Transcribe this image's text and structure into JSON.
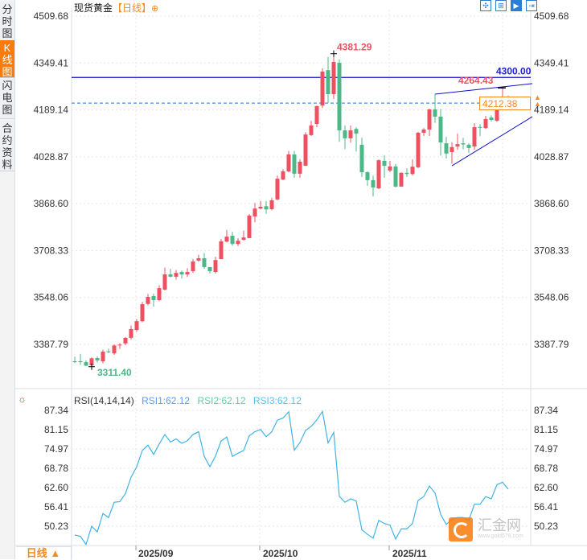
{
  "sidebar": {
    "tabs": [
      {
        "label": "分时图",
        "active": false
      },
      {
        "label": "K线图",
        "active": true
      },
      {
        "label": "闪电图",
        "active": false
      },
      {
        "label": "合约资料",
        "active": false
      }
    ]
  },
  "header": {
    "instrument": "现货黄金",
    "period": "【日线】",
    "add_icon": "⊕"
  },
  "toolbar": {
    "icons": [
      "crosshair-icon",
      "range-select-icon",
      "play-cursor-icon",
      "exit-icon"
    ]
  },
  "colors": {
    "up": "#ef5060",
    "down": "#4db887",
    "rsi": "#3fb4e8",
    "accent": "#f58a1f",
    "line": "#1010c8"
  },
  "main_chart": {
    "price_ticks": [
      "4509.68",
      "4349.41",
      "4189.14",
      "4028.87",
      "3868.60",
      "3708.33",
      "3548.06",
      "3387.79"
    ],
    "price_range": [
      3387.79,
      4509.68
    ],
    "high_label": "4381.29",
    "low_label": "3311.40",
    "recent_high_label": "4264.43",
    "hline_label": "4300.00",
    "hline_value": 4300.0,
    "last_price": "4212.38",
    "upper_trendline": {
      "from": {
        "candle": 64,
        "price": 4243
      },
      "to": {
        "candle": 81.3,
        "price": 4279
      }
    },
    "lower_trendline": {
      "from": {
        "candle": 67,
        "price": 3998
      },
      "to": {
        "candle": 81.3,
        "price": 4166
      }
    },
    "candles": [
      [
        3330,
        3346,
        3324,
        3327
      ],
      [
        3330,
        3355,
        3318,
        3327
      ],
      [
        3327,
        3333,
        3314,
        3315
      ],
      [
        3316,
        3344,
        3311.4,
        3340
      ],
      [
        3341,
        3347,
        3326,
        3333
      ],
      [
        3330,
        3370,
        3323,
        3363
      ],
      [
        3364,
        3373,
        3358,
        3361
      ],
      [
        3357,
        3388,
        3352,
        3384
      ],
      [
        3385,
        3392,
        3372,
        3387
      ],
      [
        3391,
        3413,
        3385,
        3410
      ],
      [
        3410,
        3452,
        3404,
        3440
      ],
      [
        3437,
        3474,
        3431,
        3467
      ],
      [
        3467,
        3533,
        3463,
        3525
      ],
      [
        3526,
        3560,
        3522,
        3550
      ],
      [
        3553,
        3561,
        3517,
        3539
      ],
      [
        3539,
        3590,
        3535,
        3580
      ],
      [
        3575,
        3650,
        3572,
        3627
      ],
      [
        3627,
        3646,
        3617,
        3619
      ],
      [
        3619,
        3642,
        3609,
        3632
      ],
      [
        3635,
        3640,
        3613,
        3627
      ],
      [
        3627,
        3648,
        3618,
        3635
      ],
      [
        3638,
        3680,
        3632,
        3671
      ],
      [
        3674,
        3694,
        3670,
        3682
      ],
      [
        3682,
        3700,
        3646,
        3652
      ],
      [
        3652,
        3652,
        3630,
        3638
      ],
      [
        3635,
        3687,
        3630,
        3676
      ],
      [
        3679,
        3748,
        3679,
        3740
      ],
      [
        3739,
        3779,
        3736,
        3756
      ],
      [
        3759,
        3772,
        3725,
        3731
      ],
      [
        3731,
        3751,
        3724,
        3742
      ],
      [
        3745,
        3777,
        3742,
        3753
      ],
      [
        3751,
        3833,
        3751,
        3828
      ],
      [
        3825,
        3871,
        3805,
        3852
      ],
      [
        3852,
        3878,
        3849,
        3858
      ],
      [
        3860,
        3878,
        3834,
        3849
      ],
      [
        3850,
        3889,
        3846,
        3880
      ],
      [
        3883,
        3965,
        3880,
        3954
      ],
      [
        3951,
        3987,
        3949,
        3979
      ],
      [
        3979,
        4049,
        3976,
        4037
      ],
      [
        4037,
        4049,
        3957,
        3971
      ],
      [
        3971,
        4021,
        3957,
        4012
      ],
      [
        3998,
        4113,
        3998,
        4105
      ],
      [
        4103,
        4152,
        4100,
        4136
      ],
      [
        4141,
        4204,
        4130,
        4202
      ],
      [
        4204,
        4331,
        4196,
        4320
      ],
      [
        4325,
        4370,
        4212,
        4243
      ],
      [
        4243,
        4381.29,
        4226,
        4353
      ],
      [
        4350,
        4362,
        4080,
        4119
      ],
      [
        4119,
        4136,
        4055,
        4092
      ],
      [
        4092,
        4136,
        4077,
        4119
      ],
      [
        4124,
        4130,
        4047,
        4108
      ],
      [
        4070,
        4094,
        3960,
        3976
      ],
      [
        3976,
        3979,
        3930,
        3949
      ],
      [
        3949,
        3965,
        3893,
        3924
      ],
      [
        3921,
        4020,
        3918,
        4017
      ],
      [
        4015,
        4034,
        3957,
        3998
      ],
      [
        3982,
        4015,
        3976,
        3996
      ],
      [
        3996,
        4004,
        3924,
        3927
      ],
      [
        3927,
        3976,
        3927,
        3974
      ],
      [
        3974,
        3990,
        3960,
        3970
      ],
      [
        3970,
        4020,
        3965,
        3995
      ],
      [
        3993,
        4114,
        3990,
        4111
      ],
      [
        4111,
        4127,
        4100,
        4122
      ],
      [
        4122,
        4193,
        4100,
        4191
      ],
      [
        4191,
        4245,
        4145,
        4166
      ],
      [
        4166,
        4192,
        4033,
        4078
      ],
      [
        4075,
        4097,
        4023,
        4040
      ],
      [
        4045,
        4079,
        4005,
        4062
      ],
      [
        4064,
        4108,
        4053,
        4072
      ],
      [
        4075,
        4094,
        4055,
        4071
      ],
      [
        4070,
        4075,
        4042,
        4059
      ],
      [
        4064,
        4144,
        4053,
        4130
      ],
      [
        4131,
        4141,
        4100,
        4128
      ],
      [
        4127,
        4169,
        4124,
        4158
      ],
      [
        4163,
        4170,
        4149,
        4155
      ],
      [
        4152,
        4227,
        4148,
        4212
      ],
      [
        4221,
        4264.43,
        4194,
        4228
      ],
      [
        4230,
        4238,
        4208,
        4212.38
      ]
    ]
  },
  "rsi": {
    "title": "RSI(14,14,14)",
    "rsi1": "RSI1:62.12",
    "rsi2": "RSI2:62.12",
    "rsi3": "RSI3:62.12",
    "ticks": [
      "87.34",
      "81.15",
      "74.97",
      "68.78",
      "62.60",
      "56.41",
      "50.23"
    ],
    "range": [
      50.23,
      87.34
    ],
    "values": [
      47.4,
      47.0,
      44.4,
      50.2,
      48.4,
      54.3,
      53.0,
      57.9,
      58.1,
      60.7,
      65.9,
      69.3,
      74.5,
      76.2,
      73.2,
      76.6,
      79.6,
      77.2,
      78.2,
      76.8,
      77.6,
      79.6,
      80.5,
      72.6,
      69.3,
      72.7,
      77.5,
      78.8,
      72.6,
      73.6,
      74.5,
      79.2,
      80.5,
      81.2,
      78.9,
      80.5,
      84.2,
      84.9,
      86.9,
      74.6,
      77.0,
      80.9,
      82.2,
      84.3,
      87.0,
      76.9,
      80.3,
      59.8,
      57.9,
      59.0,
      58.3,
      49.1,
      47.6,
      46.4,
      52.1,
      51.1,
      50.6,
      46.1,
      49.4,
      49.4,
      51.1,
      58.5,
      59.7,
      63.1,
      60.9,
      54.0,
      50.8,
      52.4,
      53.0,
      53.0,
      52.1,
      57.3,
      57.3,
      59.7,
      59.0,
      63.5,
      64.3,
      62.12
    ]
  },
  "x_axis": {
    "dates": [
      "2025/09",
      "2025/10",
      "2025/11"
    ],
    "date_candles": [
      11,
      33,
      56
    ]
  },
  "footer": {
    "period_button": "日线 ▲"
  },
  "watermark": {
    "brand": "汇金网",
    "url": "www.gold678.com"
  }
}
